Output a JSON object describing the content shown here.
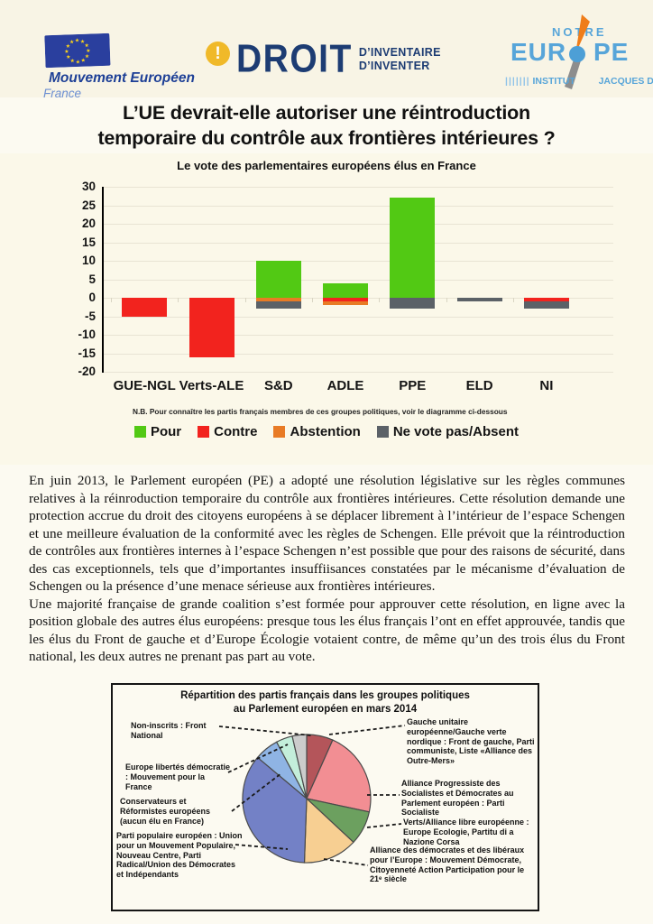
{
  "header": {
    "logo_left": {
      "title": "Mouvement Européen",
      "subtitle": "France"
    },
    "logo_center": {
      "mark": "!",
      "title": "DROIT",
      "tagline1": "D’INVENTAIRE",
      "tagline2": "D’INVENTER"
    },
    "logo_right": {
      "top": "NOTRE",
      "mid_left": "EUR",
      "mid_right": "PE",
      "bottom_ticks": "|||||||",
      "bottom1": "INSTITUT",
      "bottom2": "JACQUES DELORS"
    }
  },
  "title": {
    "line1": "L’UE devrait-elle autoriser une réintroduction",
    "line2": "temporaire du contrôle aux frontières intérieures ?"
  },
  "chart_data": [
    {
      "type": "bar",
      "title": "Le vote des parlementaires européens élus en France",
      "categories": [
        "GUE-NGL",
        "Verts-ALE",
        "S&D",
        "ADLE",
        "PPE",
        "ELD",
        "NI"
      ],
      "series": [
        {
          "name": "Pour",
          "color": "#52c914",
          "values": [
            0,
            0,
            10,
            4,
            27,
            0,
            0
          ]
        },
        {
          "name": "Contre",
          "color": "#f2231e",
          "values": [
            -5,
            -16,
            0,
            -1,
            0,
            0,
            -1
          ]
        },
        {
          "name": "Abstention",
          "color": "#e87b25",
          "values": [
            0,
            0,
            -1,
            -1,
            0,
            0,
            0
          ]
        },
        {
          "name": "Ne vote pas/Absent",
          "color": "#5b6167",
          "values": [
            0,
            0,
            -2,
            0,
            -3,
            -1,
            -2
          ]
        }
      ],
      "ylim": [
        -20,
        30
      ],
      "yticks": [
        30,
        25,
        20,
        15,
        10,
        5,
        0,
        -5,
        -10,
        -15,
        -20
      ],
      "grid": true,
      "legend_position": "bottom",
      "note": "N.B. Pour connaître les partis français membres de ces groupes politiques, voir le diagramme ci-dessous"
    },
    {
      "type": "pie",
      "title": "Répartition des partis français dans les groupes politiques au Parlement européen en mars 2014",
      "title_lines": [
        "Répartition des partis français dans les groupes politiques",
        "au Parlement européen en mars 2014"
      ],
      "slices": [
        {
          "group": "Gauche unitaire européenne/Gauche verte nordique",
          "color": "#b4555a",
          "angle_deg": 24
        },
        {
          "group": "Alliance Progressiste des Socialistes et Démocrates (Parti Socialiste)",
          "color": "#f28e93",
          "angle_deg": 78
        },
        {
          "group": "Verts/Alliance libre européenne",
          "color": "#6ca05f",
          "angle_deg": 31
        },
        {
          "group": "Alliance des démocrates et des libéraux pour l’Europe",
          "color": "#f7cf92",
          "angle_deg": 49
        },
        {
          "group": "Parti populaire européen",
          "color": "#7381c6",
          "angle_deg": 128
        },
        {
          "group": "Parti populaire européen (autres partis)",
          "color": "#8fb4e4",
          "angle_deg": 22
        },
        {
          "group": "Europe libertés démocratie",
          "color": "#c3eeda",
          "angle_deg": 15
        },
        {
          "group": "Non-inscrits",
          "color": "#cccccc",
          "angle_deg": 13
        }
      ],
      "callouts_left": [
        "Non-inscrits : Front National",
        "Europe libertés démocratie : Mouvement pour la France",
        "Conservateurs et Réformistes européens (aucun élu en France)",
        "Parti populaire européen : Union pour un Mouvement Populaire, Nouveau Centre, Parti Radical/Union des Démocrates et Indépendants"
      ],
      "callouts_right": [
        "Gauche unitaire européenne/Gauche verte nordique : Front de gauche, Parti communiste, Liste «Alliance des Outre-Mers»",
        "Alliance Progressiste des Socialistes et Démocrates au Parlement européen : Parti Socialiste",
        "Verts/Alliance libre européenne : Europe Ecologie, Partitu di a Nazione Corsa",
        "Alliance des démocrates et des libéraux pour l’Europe : Mouvement Démocrate, Citoyenneté Action Participation pour le 21ᵉ siècle"
      ]
    }
  ],
  "body": {
    "para1": "En juin 2013, le Parlement européen (PE) a adopté une résolution législative sur les règles communes relatives à la réinroduction temporaire du contrôle aux frontières intérieures. Cette résolution demande une protection accrue du droit des citoyens européens à se déplacer librement à l’intérieur de l’espace Schengen et une meilleure évaluation de la conformité avec les règles de Schengen. Elle prévoit que la réintroduction de contrôles aux frontières internes à l’espace Schengen n’est possible que pour des raisons de sécurité, dans des cas exceptionnels, tels que d’importantes insuffiisances constatées par le mécanisme d’évaluation de Schengen ou la présence d’une menace sérieuse aux frontières intérieures.",
    "para2": "Une majorité française de grande coalition s’est formée pour approuver cette résolution, en ligne avec la position globale des autres élus européens: presque tous les élus français l’ont en effet approuvée, tandis que les élus du Front de gauche et d’Europe Écologie votaient contre, de même qu’un des trois élus du Front national, les deux autres ne prenant pas part au vote."
  }
}
